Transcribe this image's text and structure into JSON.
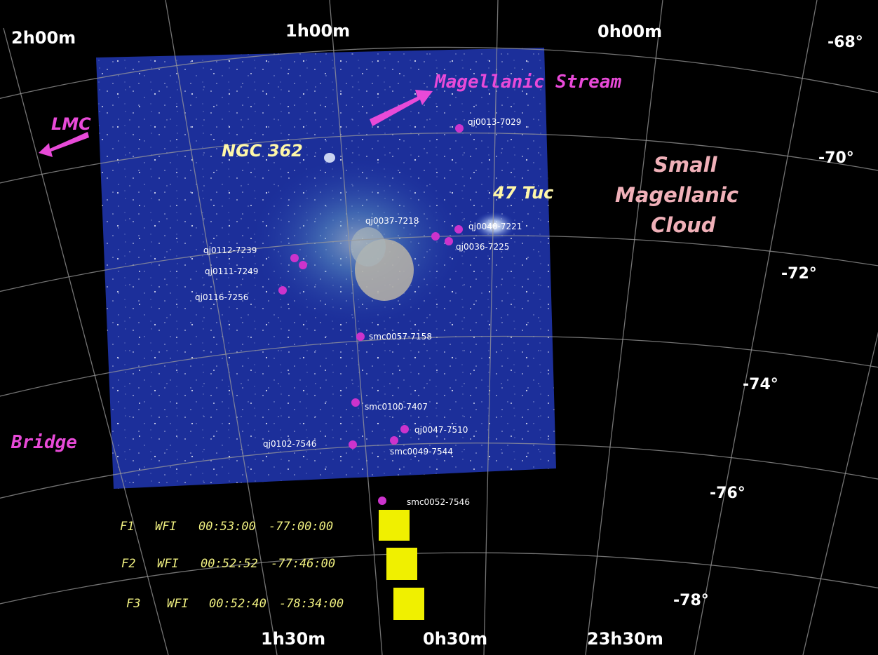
{
  "ra_labels": [
    "2h00m",
    "1h00m",
    "0h00m",
    "1h30m",
    "0h30m",
    "23h30m"
  ],
  "dec_labels": [
    "-68°",
    "-70°",
    "-72°",
    "-74°",
    "-76°",
    "-78°"
  ],
  "regions": {
    "magellanic_stream": "Magellanic Stream",
    "lmc": "LMC",
    "bridge": "Bridge",
    "smc_line1": "Small",
    "smc_line2": "Magellanic",
    "smc_line3": "Cloud"
  },
  "clusters": {
    "ngc362": "NGC 362",
    "tuc47": "47 Tuc"
  },
  "sources": [
    "qj0013-7029",
    "qj0037-7218",
    "qj0040-7221",
    "qj0036-7225",
    "qj0112-7239",
    "qj0111-7249",
    "qj0116-7256",
    "smc0057-7158",
    "smc0100-7407",
    "qj0047-7510",
    "qj0102-7546",
    "smc0049-7544",
    "smc0052-7546"
  ],
  "fields": [
    {
      "id": "F1",
      "inst": "WFI",
      "ra": "00:53:00",
      "dec": "-77:00:00"
    },
    {
      "id": "F2",
      "inst": "WFI",
      "ra": "00:52:52",
      "dec": "-77:46:00"
    },
    {
      "id": "F3",
      "inst": "WFI",
      "ra": "00:52:40",
      "dec": "-78:34:00"
    }
  ],
  "colors": {
    "sky_background": "#000000",
    "survey_image": "#1c2f9a",
    "grid": "#9a9a9a",
    "marker": "#cc33cc",
    "field_box": "#f0f000",
    "region_label": "#e84ad8"
  }
}
